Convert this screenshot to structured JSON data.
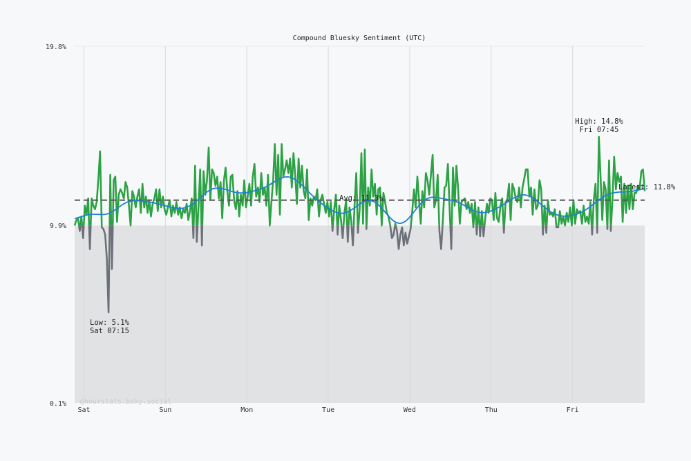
{
  "chart_data": {
    "type": "line",
    "title": "Compound Bluesky Sentiment (UTC)",
    "xlabel": "",
    "ylabel": "",
    "ylim": [
      0.1,
      19.8
    ],
    "y_ticks": [
      "19.8%",
      "9.9%",
      "0.1%"
    ],
    "x_ticks": [
      "Sat",
      "Sun",
      "Mon",
      "Tue",
      "Wed",
      "Thu",
      "Fri"
    ],
    "baseline": 9.9,
    "grid": "vertical day lines",
    "series_by_day": [
      {
        "day": "Fri",
        "times": [
          "21:15",
          "21:45",
          "22:15",
          "22:45",
          "23:15",
          "23:45"
        ],
        "values": [
          9.9,
          10.2,
          10.3,
          9.6,
          10.4,
          9.2
        ]
      },
      {
        "day": "Sat",
        "values": [
          11.0,
          10.5,
          11.4,
          8.6,
          11.4,
          11.0,
          10.8,
          11.2,
          12.5,
          14.0,
          9.8,
          9.7,
          9.4,
          8.0,
          5.1,
          12.7,
          7.5,
          12.4,
          12.6,
          10.1,
          11.6,
          11.9,
          11.7,
          11.4,
          12.3,
          12.0,
          11.0,
          9.9,
          11.8,
          11.5,
          10.9,
          11.5,
          11.9,
          10.6,
          12.2,
          10.9,
          11.5,
          10.6,
          11.3,
          10.4,
          11.1,
          11.4,
          11.9,
          10.7,
          11.9,
          10.9,
          11.5,
          10.8
        ]
      },
      {
        "day": "Sun",
        "values": [
          10.5,
          10.9,
          11.3,
          10.4,
          11.0,
          10.6,
          11.2,
          10.5,
          10.9,
          10.3,
          10.8,
          10.6,
          11.1,
          10.2,
          10.7,
          11.4,
          9.2,
          13.2,
          9.0,
          10.9,
          13.0,
          8.8,
          12.9,
          11.6,
          12.4,
          14.2,
          11.3,
          13.0,
          12.8,
          12.1,
          12.6,
          11.4,
          12.3,
          10.3,
          12.4,
          13.1,
          11.8,
          11.0,
          12.6,
          12.7,
          11.3,
          10.8,
          11.8,
          10.4,
          11.6,
          11.0,
          12.4,
          10.9
        ]
      },
      {
        "day": "Mon",
        "values": [
          11.5,
          12.2,
          11.0,
          12.6,
          13.3,
          11.5,
          12.0,
          11.2,
          12.8,
          11.6,
          12.0,
          11.0,
          12.7,
          9.9,
          11.2,
          12.4,
          14.4,
          11.6,
          13.8,
          10.5,
          14.4,
          12.6,
          13.0,
          13.5,
          12.8,
          13.6,
          12.0,
          13.9,
          12.7,
          11.1,
          13.6,
          12.0,
          13.2,
          11.8,
          11.4,
          13.0,
          10.2,
          11.4,
          11.0,
          11.5,
          11.3,
          11.9,
          10.4,
          11.3,
          11.6,
          11.1,
          10.6,
          11.2
        ]
      },
      {
        "day": "Tue",
        "values": [
          10.4,
          11.2,
          9.6,
          10.8,
          11.6,
          9.4,
          11.0,
          10.2,
          9.2,
          10.6,
          11.3,
          9.0,
          10.9,
          10.2,
          8.8,
          11.0,
          12.8,
          9.5,
          10.8,
          13.9,
          10.0,
          14.1,
          9.7,
          12.0,
          11.0,
          13.0,
          11.5,
          12.2,
          10.5,
          11.9,
          12.0,
          9.9,
          11.7,
          11.2,
          10.6,
          10.4,
          9.9,
          9.2,
          9.4,
          10.0,
          9.6,
          8.6,
          9.4,
          9.8,
          8.8,
          9.5,
          8.9,
          9.3
        ]
      },
      {
        "day": "Wed",
        "values": [
          9.7,
          10.7,
          11.9,
          10.9,
          12.6,
          11.3,
          10.0,
          11.8,
          10.9,
          12.8,
          12.4,
          11.6,
          12.7,
          13.8,
          10.9,
          11.3,
          12.7,
          9.6,
          8.6,
          10.1,
          12.0,
          12.1,
          13.3,
          10.9,
          8.6,
          13.1,
          11.0,
          13.2,
          12.0,
          10.0,
          11.2,
          11.3,
          11.4,
          10.8,
          11.2,
          10.6,
          11.1,
          9.8,
          11.2,
          9.4,
          10.9,
          9.3,
          10.7,
          9.3,
          10.3,
          11.1,
          10.6,
          11.4
        ]
      },
      {
        "day": "Thu",
        "values": [
          11.3,
          10.2,
          11.7,
          10.3,
          10.1,
          11.0,
          11.4,
          9.5,
          11.2,
          11.3,
          12.2,
          10.2,
          12.2,
          11.9,
          11.4,
          11.2,
          12.0,
          10.9,
          12.0,
          12.5,
          13.0,
          13.0,
          11.5,
          12.0,
          10.5,
          11.9,
          10.8,
          11.0,
          12.4,
          11.9,
          9.4,
          11.0,
          9.5,
          11.3,
          10.5,
          10.6,
          10.4,
          10.8,
          9.8,
          9.8,
          10.7,
          10.0,
          10.4,
          9.9,
          10.6,
          10.1,
          10.9,
          9.9
        ]
      },
      {
        "day": "Fri",
        "values": [
          11.3,
          10.0,
          10.8,
          10.6,
          10.7,
          10.0,
          11.0,
          10.1,
          10.4,
          10.0,
          11.2,
          9.4,
          11.3,
          12.2,
          9.5,
          14.8,
          12.5,
          10.2,
          12.3,
          11.9,
          9.7,
          13.5,
          9.6,
          11.3,
          13.7,
          11.9,
          12.8,
          12.3,
          12.6,
          10.1,
          12.2,
          10.6,
          12.1,
          10.8,
          12.2,
          10.8,
          11.7,
          11.7,
          12.1,
          11.9,
          12.9,
          13.0,
          11.8
        ]
      }
    ],
    "annotations": {
      "high_label": "High: 14.8%",
      "high_time": "Fri 07:45",
      "low_label": "Low: 5.1%",
      "low_time": "Sat 07:15",
      "avg_label": "Avg: 11.3%",
      "avg_value": 11.3,
      "latest_label": "Latest: 11.8%"
    },
    "colors": {
      "above_baseline": "#2ca244",
      "below_baseline": "#6b7079",
      "smoothed": "#1f80d8",
      "avg_line": "#555555",
      "below_fill": "#e1e2e4"
    },
    "watermark": "@hourstats.bsky.social"
  }
}
